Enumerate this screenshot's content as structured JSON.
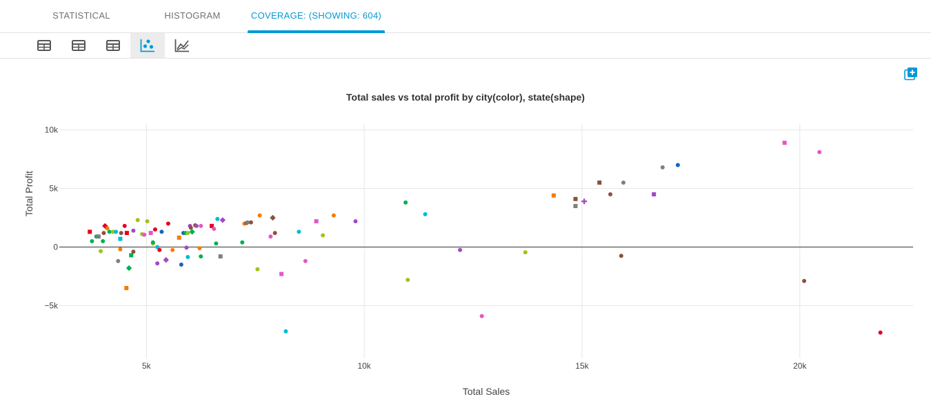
{
  "tabs": [
    {
      "label": "STATISTICAL",
      "active": false
    },
    {
      "label": "HISTOGRAM",
      "active": false
    },
    {
      "label": "COVERAGE: (SHOWING: 604)",
      "active": true
    }
  ],
  "toolbar": {
    "tools": [
      {
        "icon": "table-icon",
        "active": false
      },
      {
        "icon": "table-icon",
        "active": false
      },
      {
        "icon": "table-icon",
        "active": false
      },
      {
        "icon": "scatter-chart-icon",
        "active": true
      },
      {
        "icon": "line-chart-icon",
        "active": false
      }
    ]
  },
  "add_chart_icon": "add-chart-icon",
  "colors": {
    "accent": "#0099d6",
    "palette": [
      "#e6001e",
      "#f57c00",
      "#00b050",
      "#8d5040",
      "#7f7f7f",
      "#e356c8",
      "#00bcd4",
      "#1565c0",
      "#a349c4",
      "#9cc41b"
    ]
  },
  "chart_data": {
    "type": "scatter",
    "title": "Total sales vs total profit by city(color), state(shape)",
    "xlabel": "Total Sales",
    "ylabel": "Total Profit",
    "xlim": [
      3000,
      22600
    ],
    "ylim": [
      -9500,
      10500
    ],
    "xticks": [
      {
        "value": 5000,
        "label": "5k"
      },
      {
        "value": 10000,
        "label": "10k"
      },
      {
        "value": 15000,
        "label": "15k"
      },
      {
        "value": 20000,
        "label": "20k"
      }
    ],
    "yticks": [
      {
        "value": 10000,
        "label": "10k"
      },
      {
        "value": 5000,
        "label": "5k"
      },
      {
        "value": 0,
        "label": "0"
      },
      {
        "value": -5000,
        "label": "−5k"
      }
    ],
    "grid": true,
    "legend": "none",
    "points": [
      {
        "x": 3700,
        "y": 1300,
        "c": 0,
        "s": "square"
      },
      {
        "x": 3750,
        "y": 500,
        "c": 2,
        "s": "circle"
      },
      {
        "x": 3850,
        "y": 900,
        "c": 2,
        "s": "circle"
      },
      {
        "x": 3900,
        "y": 900,
        "c": 4,
        "s": "square"
      },
      {
        "x": 3950,
        "y": -350,
        "c": 9,
        "s": "circle"
      },
      {
        "x": 4000,
        "y": 500,
        "c": 2,
        "s": "circle"
      },
      {
        "x": 4020,
        "y": 1200,
        "c": 3,
        "s": "circle"
      },
      {
        "x": 4050,
        "y": 1800,
        "c": 0,
        "s": "diamond"
      },
      {
        "x": 4100,
        "y": 1600,
        "c": 1,
        "s": "circle"
      },
      {
        "x": 4150,
        "y": 1300,
        "c": 2,
        "s": "circle"
      },
      {
        "x": 4230,
        "y": 1300,
        "c": 9,
        "s": "circle"
      },
      {
        "x": 4300,
        "y": 1300,
        "c": 6,
        "s": "circle"
      },
      {
        "x": 4350,
        "y": -1200,
        "c": 4,
        "s": "circle"
      },
      {
        "x": 4420,
        "y": 1200,
        "c": 3,
        "s": "circle"
      },
      {
        "x": 4400,
        "y": 700,
        "c": 6,
        "s": "square"
      },
      {
        "x": 4400,
        "y": -200,
        "c": 1,
        "s": "circle"
      },
      {
        "x": 4500,
        "y": 1800,
        "c": 0,
        "s": "circle"
      },
      {
        "x": 4550,
        "y": 1200,
        "c": 0,
        "s": "square"
      },
      {
        "x": 4540,
        "y": -3500,
        "c": 1,
        "s": "square"
      },
      {
        "x": 4600,
        "y": -1800,
        "c": 2,
        "s": "diamond"
      },
      {
        "x": 4650,
        "y": -700,
        "c": 2,
        "s": "square"
      },
      {
        "x": 4700,
        "y": 1400,
        "c": 8,
        "s": "circle"
      },
      {
        "x": 4700,
        "y": -400,
        "c": 3,
        "s": "circle"
      },
      {
        "x": 4800,
        "y": 2300,
        "c": 9,
        "s": "circle"
      },
      {
        "x": 4900,
        "y": 1100,
        "c": 9,
        "s": "circle"
      },
      {
        "x": 4950,
        "y": 1050,
        "c": 5,
        "s": "circle"
      },
      {
        "x": 5020,
        "y": 2200,
        "c": 9,
        "s": "circle"
      },
      {
        "x": 5100,
        "y": 1200,
        "c": 5,
        "s": "square"
      },
      {
        "x": 5150,
        "y": 300,
        "c": 9,
        "s": "circle"
      },
      {
        "x": 5150,
        "y": 400,
        "c": 2,
        "s": "circle"
      },
      {
        "x": 5200,
        "y": 1500,
        "c": 0,
        "s": "circle"
      },
      {
        "x": 5250,
        "y": 0,
        "c": 6,
        "s": "circle"
      },
      {
        "x": 5300,
        "y": -250,
        "c": 0,
        "s": "circle"
      },
      {
        "x": 5250,
        "y": -1400,
        "c": 8,
        "s": "circle"
      },
      {
        "x": 5350,
        "y": 1300,
        "c": 7,
        "s": "circle"
      },
      {
        "x": 5450,
        "y": -1100,
        "c": 8,
        "s": "diamond"
      },
      {
        "x": 5500,
        "y": 2000,
        "c": 0,
        "s": "circle"
      },
      {
        "x": 5600,
        "y": -250,
        "c": 1,
        "s": "circle"
      },
      {
        "x": 5750,
        "y": 800,
        "c": 1,
        "s": "square"
      },
      {
        "x": 5800,
        "y": -1500,
        "c": 7,
        "s": "circle"
      },
      {
        "x": 5850,
        "y": 1200,
        "c": 7,
        "s": "circle"
      },
      {
        "x": 5900,
        "y": 1200,
        "c": 2,
        "s": "circle"
      },
      {
        "x": 5920,
        "y": -50,
        "c": 8,
        "s": "circle"
      },
      {
        "x": 5950,
        "y": -850,
        "c": 6,
        "s": "circle"
      },
      {
        "x": 5950,
        "y": 1200,
        "c": 9,
        "s": "circle"
      },
      {
        "x": 6000,
        "y": 1800,
        "c": 8,
        "s": "circle"
      },
      {
        "x": 6020,
        "y": 1650,
        "c": 3,
        "s": "circle"
      },
      {
        "x": 6050,
        "y": 1300,
        "c": 2,
        "s": "diamond"
      },
      {
        "x": 6120,
        "y": 1850,
        "c": 3,
        "s": "circle"
      },
      {
        "x": 6150,
        "y": 1800,
        "c": 8,
        "s": "circle"
      },
      {
        "x": 6250,
        "y": 1800,
        "c": 5,
        "s": "circle"
      },
      {
        "x": 6220,
        "y": -100,
        "c": 1,
        "s": "circle"
      },
      {
        "x": 6250,
        "y": -800,
        "c": 2,
        "s": "circle"
      },
      {
        "x": 6500,
        "y": 1800,
        "c": 0,
        "s": "square"
      },
      {
        "x": 6550,
        "y": 1550,
        "c": 5,
        "s": "circle"
      },
      {
        "x": 6600,
        "y": 300,
        "c": 2,
        "s": "circle"
      },
      {
        "x": 6630,
        "y": 2400,
        "c": 6,
        "s": "circle"
      },
      {
        "x": 6750,
        "y": 2300,
        "c": 8,
        "s": "diamond"
      },
      {
        "x": 6700,
        "y": -800,
        "c": 4,
        "s": "square"
      },
      {
        "x": 7200,
        "y": 400,
        "c": 2,
        "s": "circle"
      },
      {
        "x": 7250,
        "y": 2000,
        "c": 1,
        "s": "circle"
      },
      {
        "x": 7300,
        "y": 2050,
        "c": 3,
        "s": "circle"
      },
      {
        "x": 7320,
        "y": 2100,
        "c": 4,
        "s": "circle"
      },
      {
        "x": 7400,
        "y": 2100,
        "c": 3,
        "s": "circle"
      },
      {
        "x": 7550,
        "y": -1900,
        "c": 9,
        "s": "circle"
      },
      {
        "x": 7600,
        "y": 2700,
        "c": 1,
        "s": "circle"
      },
      {
        "x": 7850,
        "y": 900,
        "c": 5,
        "s": "circle"
      },
      {
        "x": 7900,
        "y": 2500,
        "c": 3,
        "s": "diamond"
      },
      {
        "x": 7950,
        "y": 1200,
        "c": 3,
        "s": "circle"
      },
      {
        "x": 8100,
        "y": -2300,
        "c": 5,
        "s": "square"
      },
      {
        "x": 8200,
        "y": -7200,
        "c": 6,
        "s": "circle"
      },
      {
        "x": 8500,
        "y": 1300,
        "c": 6,
        "s": "circle"
      },
      {
        "x": 8650,
        "y": -1200,
        "c": 5,
        "s": "circle"
      },
      {
        "x": 8900,
        "y": 2200,
        "c": 5,
        "s": "square"
      },
      {
        "x": 9050,
        "y": 1000,
        "c": 9,
        "s": "circle"
      },
      {
        "x": 9300,
        "y": 2700,
        "c": 1,
        "s": "circle"
      },
      {
        "x": 9800,
        "y": 2200,
        "c": 8,
        "s": "circle"
      },
      {
        "x": 10950,
        "y": 3800,
        "c": 2,
        "s": "circle"
      },
      {
        "x": 11000,
        "y": -2800,
        "c": 9,
        "s": "circle"
      },
      {
        "x": 11400,
        "y": 2800,
        "c": 6,
        "s": "circle"
      },
      {
        "x": 12200,
        "y": -250,
        "c": 8,
        "s": "circle"
      },
      {
        "x": 12700,
        "y": -5900,
        "c": 5,
        "s": "circle"
      },
      {
        "x": 13700,
        "y": -450,
        "c": 9,
        "s": "circle"
      },
      {
        "x": 14350,
        "y": 4400,
        "c": 1,
        "s": "square"
      },
      {
        "x": 14850,
        "y": 4100,
        "c": 3,
        "s": "square"
      },
      {
        "x": 14850,
        "y": 3500,
        "c": 4,
        "s": "square"
      },
      {
        "x": 15050,
        "y": 3900,
        "c": 8,
        "s": "cross"
      },
      {
        "x": 15400,
        "y": 5500,
        "c": 3,
        "s": "square"
      },
      {
        "x": 15650,
        "y": 4500,
        "c": 3,
        "s": "circle"
      },
      {
        "x": 15900,
        "y": -750,
        "c": 3,
        "s": "circle"
      },
      {
        "x": 15950,
        "y": 5500,
        "c": 4,
        "s": "circle"
      },
      {
        "x": 16650,
        "y": 4500,
        "c": 8,
        "s": "square"
      },
      {
        "x": 16850,
        "y": 6800,
        "c": 4,
        "s": "circle"
      },
      {
        "x": 17200,
        "y": 7000,
        "c": 7,
        "s": "circle"
      },
      {
        "x": 19650,
        "y": 8900,
        "c": 5,
        "s": "square"
      },
      {
        "x": 20100,
        "y": -2900,
        "c": 3,
        "s": "circle"
      },
      {
        "x": 20450,
        "y": 8100,
        "c": 5,
        "s": "circle"
      },
      {
        "x": 21850,
        "y": -7300,
        "c": 0,
        "s": "circle"
      }
    ]
  }
}
